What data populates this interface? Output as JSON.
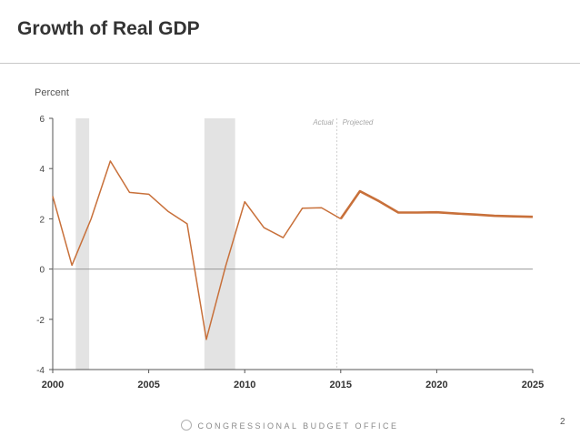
{
  "slide": {
    "title": "Growth of Real GDP",
    "footer": "CONGRESSIONAL BUDGET OFFICE",
    "page_number": "2"
  },
  "colors": {
    "line": "#c8703a",
    "recession": "#e3e3e3",
    "zero_line": "#9a9a9a",
    "divider": "#d0d0d0"
  },
  "chart_data": {
    "type": "line",
    "title": "Growth of Real GDP",
    "ylabel": "Percent",
    "xlabel": "",
    "xlim": [
      2000,
      2025
    ],
    "ylim": [
      -4,
      6
    ],
    "x_ticks": [
      2000,
      2005,
      2010,
      2015,
      2020,
      2025
    ],
    "y_ticks": [
      -4,
      -2,
      0,
      2,
      4,
      6
    ],
    "annotations": {
      "actual": "Actual",
      "projected": "Projected",
      "divider_x": 2014.8
    },
    "recession_bands": [
      [
        2001.2,
        2001.9
      ],
      [
        2007.9,
        2009.5
      ]
    ],
    "series": [
      {
        "name": "Actual",
        "x": [
          2000,
          2001,
          2002,
          2003,
          2004,
          2005,
          2006,
          2007,
          2008,
          2009,
          2010,
          2011,
          2012,
          2013,
          2014,
          2015
        ],
        "values": [
          2.9,
          0.15,
          2.0,
          4.3,
          3.05,
          2.98,
          2.3,
          1.8,
          -2.8,
          0.1,
          2.68,
          1.65,
          1.25,
          2.42,
          2.44,
          2.0
        ]
      },
      {
        "name": "Projected",
        "x": [
          2015,
          2016,
          2017,
          2018,
          2019,
          2020,
          2021,
          2022,
          2023,
          2024,
          2025
        ],
        "values": [
          2.0,
          3.1,
          2.7,
          2.25,
          2.25,
          2.26,
          2.21,
          2.17,
          2.12,
          2.1,
          2.08
        ]
      }
    ]
  }
}
